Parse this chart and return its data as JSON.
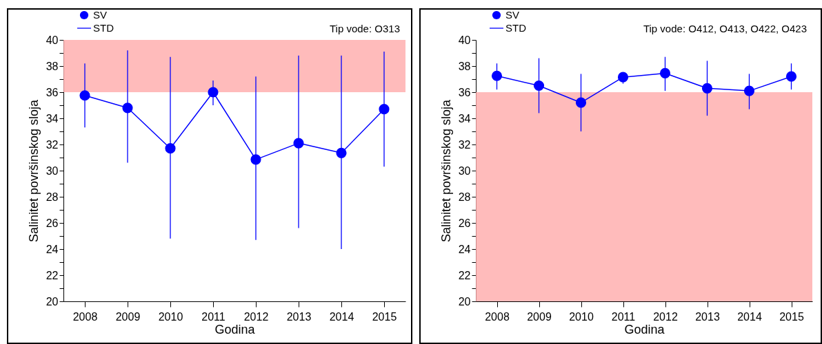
{
  "chart_data": [
    {
      "type": "line",
      "subtitle": "Tip vode: O313",
      "xlabel": "Godina",
      "ylabel": "Salinitet površinskog sloja",
      "categories": [
        "2008",
        "2009",
        "2010",
        "2011",
        "2012",
        "2013",
        "2014",
        "2015"
      ],
      "series": [
        {
          "name": "SV",
          "color": "#0000ff",
          "values": [
            35.75,
            34.8,
            31.7,
            36.0,
            30.85,
            32.1,
            31.35,
            34.7
          ],
          "errors": [
            [
              33.3,
              38.2
            ],
            [
              30.6,
              39.2
            ],
            [
              24.8,
              38.7
            ],
            [
              35.0,
              36.9
            ],
            [
              24.7,
              37.2
            ],
            [
              25.6,
              38.8
            ],
            [
              24.0,
              38.8
            ],
            [
              30.3,
              39.1
            ]
          ]
        }
      ],
      "ylim": [
        20,
        40
      ],
      "yticks": [
        20,
        {
          "value": 21,
          "label": null
        },
        22,
        {
          "value": 23,
          "label": null
        },
        24,
        {
          "value": 25,
          "label": null
        },
        26,
        {
          "value": 27,
          "label": null
        },
        28,
        {
          "value": 29,
          "label": null
        },
        30,
        {
          "value": 31,
          "label": null
        },
        32,
        {
          "value": 33,
          "label": null
        },
        34,
        {
          "value": 35,
          "label": null
        },
        36,
        {
          "value": 37,
          "label": null
        },
        38,
        {
          "value": 39,
          "label": null
        },
        40
      ],
      "bands": [
        {
          "axis": "y",
          "from": 36,
          "to": 40,
          "color": "#ffaaaa"
        }
      ],
      "annotations": [
        "STD"
      ],
      "legend": "top left",
      "marker": "circle"
    },
    {
      "type": "line",
      "subtitle": "Tip vode: O412, O413, O422, O423",
      "xlabel": "Godina",
      "ylabel": "Salinitet površinskog sloja",
      "categories": [
        "2008",
        "2009",
        "2010",
        "2011",
        "2012",
        "2013",
        "2014",
        "2015"
      ],
      "series": [
        {
          "name": "SV",
          "color": "#0000ff",
          "values": [
            37.25,
            36.5,
            35.2,
            37.15,
            37.45,
            36.3,
            36.1,
            37.2
          ],
          "errors": [
            [
              36.2,
              38.2
            ],
            [
              34.4,
              38.6
            ],
            [
              33.0,
              37.4
            ],
            [
              36.65,
              37.15
            ],
            [
              36.1,
              38.7
            ],
            [
              34.2,
              38.4
            ],
            [
              34.7,
              37.4
            ],
            [
              36.2,
              38.2
            ]
          ]
        }
      ],
      "ylim": [
        20,
        40
      ],
      "yticks": [
        20,
        {
          "value": 21,
          "label": null
        },
        22,
        {
          "value": 23,
          "label": null
        },
        24,
        {
          "value": 25,
          "label": null
        },
        26,
        {
          "value": 27,
          "label": null
        },
        28,
        {
          "value": 29,
          "label": null
        },
        30,
        {
          "value": 31,
          "label": null
        },
        32,
        {
          "value": 33,
          "label": null
        },
        34,
        {
          "value": 35,
          "label": null
        },
        36,
        {
          "value": 37,
          "label": null
        },
        38,
        {
          "value": 39,
          "label": null
        },
        40
      ],
      "bands": [
        {
          "axis": "y",
          "from": 20,
          "to": 36,
          "color": "#ffaaaa"
        }
      ],
      "annotations": [
        "STD"
      ],
      "legend": "top left",
      "marker": "circle"
    }
  ]
}
